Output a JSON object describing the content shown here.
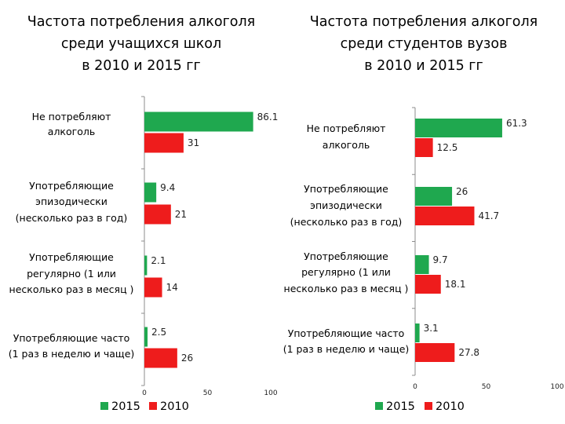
{
  "chart_data": [
    {
      "type": "bar",
      "orientation": "horizontal",
      "title": "Частота потребления алкоголя\nсреди учащихся школ\nв 2010 и 2015 гг",
      "categories": [
        "Не потребляют\nалкоголь",
        "Употребляющие\nэпизодически\n(несколько раз в год)",
        "Употребляющие\nрегулярно (1 или\nнесколько раз в месяц )",
        "Употребляющие часто\n(1 раз в неделю и чаще)"
      ],
      "series": [
        {
          "name": "2015",
          "color": "#1FA84F",
          "values": [
            86.1,
            9.4,
            2.1,
            2.5
          ]
        },
        {
          "name": "2010",
          "color": "#EE1C1C",
          "values": [
            31,
            21,
            14,
            26
          ]
        }
      ],
      "value_labels": [
        [
          "86.1",
          "9.4",
          "2.1",
          "2.5"
        ],
        [
          "31",
          "21",
          "14",
          "26"
        ]
      ],
      "xlim": [
        0,
        100
      ],
      "xticks": [
        "0",
        "50",
        "100"
      ],
      "legend": [
        "2015",
        "2010"
      ]
    },
    {
      "type": "bar",
      "orientation": "horizontal",
      "title": "Частота потребления алкоголя\nсреди студентов вузов\nв 2010 и 2015 гг",
      "categories": [
        "Не потребляют\nалкоголь",
        "Употребляющие\nэпизодически\n(несколько раз в год)",
        "Употребляющие\nрегулярно (1 или\nнесколько раз в месяц )",
        "Употребляющие часто\n(1 раз в неделю и чаще)"
      ],
      "series": [
        {
          "name": "2015",
          "color": "#1FA84F",
          "values": [
            61.3,
            26,
            9.7,
            3.1
          ]
        },
        {
          "name": "2010",
          "color": "#EE1C1C",
          "values": [
            12.5,
            41.7,
            18.1,
            27.8
          ]
        }
      ],
      "value_labels": [
        [
          "61.3",
          "26",
          "9.7",
          "3.1"
        ],
        [
          "12.5",
          "41.7",
          "18.1",
          "27.8"
        ]
      ],
      "xlim": [
        0,
        100
      ],
      "xticks": [
        "0",
        "50",
        "100"
      ],
      "legend": [
        "2015",
        "2010"
      ]
    }
  ]
}
